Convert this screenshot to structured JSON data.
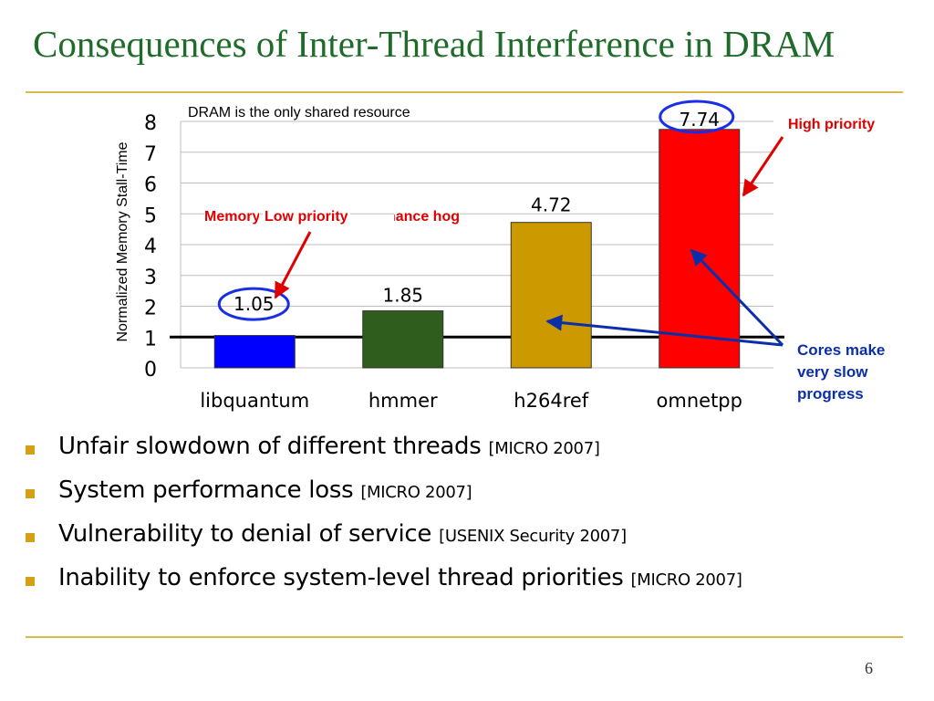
{
  "slide": {
    "title": "Consequences of Inter-Thread Interference in DRAM",
    "page_number": "6"
  },
  "annotations": {
    "shared_resource_note": "DRAM is the only shared resource",
    "memory_hog_label": "Memory Performance hog",
    "low_priority_label": "Low priority",
    "high_priority_label": "High priority",
    "slow_progress_label": "Cores make very slow progress",
    "slow_progress_lines": [
      "Cores make",
      "very slow",
      "progress"
    ]
  },
  "bullets": [
    {
      "text": "Unfair slowdown of different threads",
      "ref": "[MICRO 2007]"
    },
    {
      "text": "System performance loss",
      "ref": "[MICRO 2007]"
    },
    {
      "text": "Vulnerability to denial of service",
      "ref": "[USENIX Security 2007]"
    },
    {
      "text": "Inability to enforce system-level thread priorities",
      "ref": "[MICRO 2007]"
    }
  ],
  "chart_data": {
    "type": "bar",
    "categories": [
      "libquantum",
      "hmmer",
      "h264ref",
      "omnetpp"
    ],
    "values": [
      1.05,
      1.85,
      4.72,
      7.74
    ],
    "data_labels": [
      "1.05",
      "1.85",
      "4.72",
      "7.74"
    ],
    "bar_colors": [
      "#0000ff",
      "#2e5d1e",
      "#cc9900",
      "#ff0000"
    ],
    "ylabel": "Normalized Memory Stall-Time",
    "xlabel": "",
    "ylim": [
      0,
      8
    ],
    "yticks": [
      0,
      1,
      2,
      3,
      4,
      5,
      6,
      7,
      8
    ],
    "reference_line": 1,
    "grid": true,
    "legend": "none",
    "circled_labels": [
      "libquantum",
      "omnetpp"
    ]
  },
  "colors": {
    "title": "#1f6b2a",
    "rule": "#d9b84c",
    "annotation_red": "#e00000",
    "annotation_blue": "#0b2fa8",
    "bullet": "#d4a017"
  }
}
